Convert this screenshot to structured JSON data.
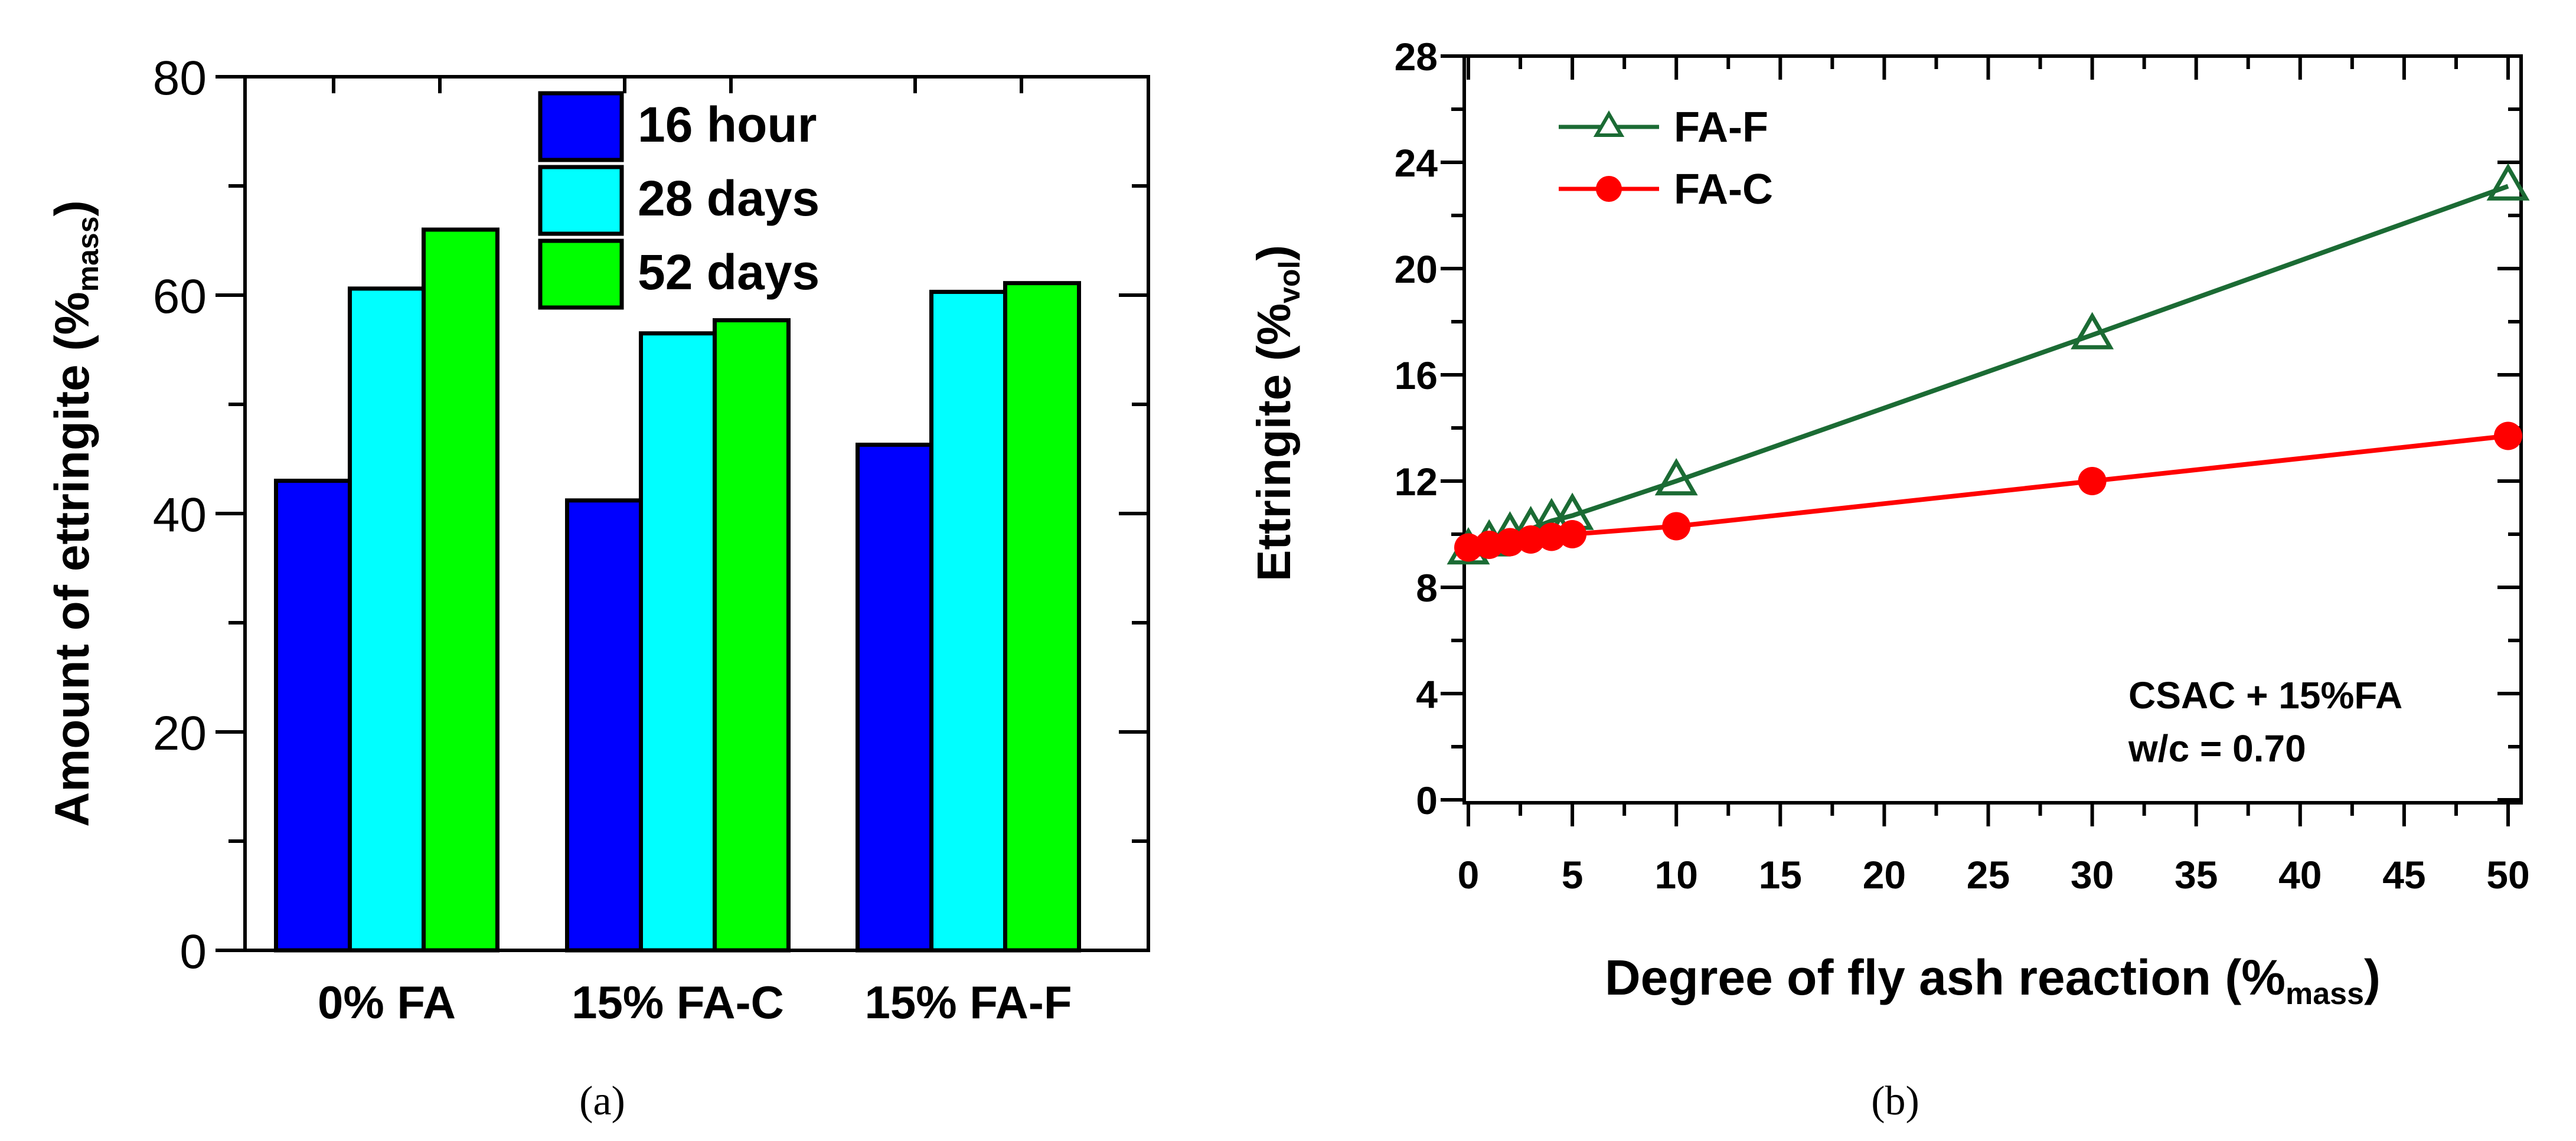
{
  "colors": {
    "bar_16h": "#0000ff",
    "bar_28d": "#00ffff",
    "bar_52d": "#00ff00",
    "fa_f_line": "#1b6b34",
    "fa_c_line": "#ff0000",
    "axis": "#000000"
  },
  "chart_data": [
    {
      "type": "bar",
      "panel_label": "(a)",
      "categories": [
        "0% FA",
        "15% FA-C",
        "15% FA-F"
      ],
      "series": [
        {
          "name": "16 hour",
          "values": [
            43,
            41.2,
            46.3
          ]
        },
        {
          "name": "28 days",
          "values": [
            60.6,
            56.5,
            60.3
          ]
        },
        {
          "name": "52 days",
          "values": [
            66,
            57.7,
            61.1
          ]
        }
      ],
      "ylabel_main": "Amount of ettringite (%",
      "ylabel_sub": "mass",
      "ylabel_close": ")",
      "ylim": [
        0,
        80
      ],
      "yticks": [
        "0",
        "20",
        "40",
        "60",
        "80"
      ],
      "legend_position": "top-center"
    },
    {
      "type": "line",
      "panel_label": "(b)",
      "series": [
        {
          "name": "FA-F",
          "marker": "open-triangle",
          "x": [
            0,
            1,
            2,
            3,
            4,
            5,
            10,
            30,
            50
          ],
          "y": [
            9.4,
            9.7,
            10.0,
            10.2,
            10.5,
            10.7,
            12.0,
            17.5,
            23.1
          ]
        },
        {
          "name": "FA-C",
          "marker": "filled-circle",
          "x": [
            0,
            1,
            2,
            3,
            4,
            5,
            10,
            30,
            50
          ],
          "y": [
            9.5,
            9.6,
            9.7,
            9.8,
            9.9,
            10.0,
            10.3,
            12.0,
            13.7
          ]
        }
      ],
      "xlabel_main": "Degree of fly ash reaction (%",
      "xlabel_sub": "mass",
      "xlabel_close": ")",
      "ylabel_main": "Ettringite (%",
      "ylabel_sub": "vol",
      "ylabel_close": ")",
      "xlim": [
        0,
        50
      ],
      "ylim": [
        0,
        28
      ],
      "xticks": [
        "0",
        "5",
        "10",
        "15",
        "20",
        "25",
        "30",
        "35",
        "40",
        "45",
        "50"
      ],
      "yticks": [
        "0",
        "4",
        "8",
        "12",
        "16",
        "20",
        "24",
        "28"
      ],
      "annotation": [
        "CSAC + 15%FA",
        "w/c = 0.70"
      ],
      "legend_position": "top-left"
    }
  ]
}
